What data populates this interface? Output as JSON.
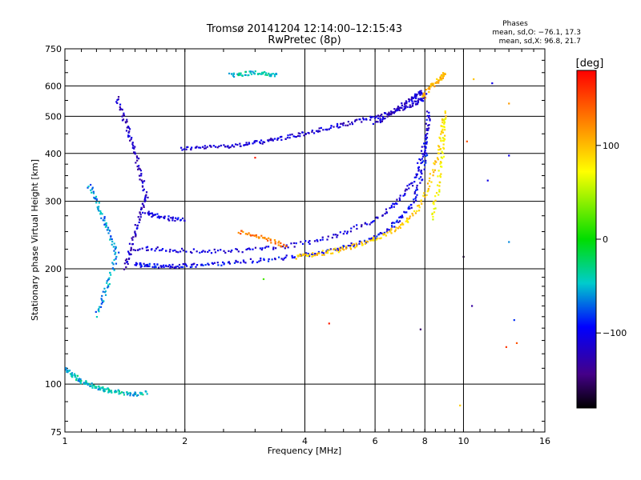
{
  "chart_data": {
    "type": "scatter",
    "title": "Tromsø 20141204 12:14:00–12:15:43",
    "subtitle": "RwPretec (8p)",
    "xlabel": "Frequency [MHz]",
    "ylabel": "Stationary phase Virtual Height [km]",
    "xscale": "log",
    "yscale": "log",
    "xlim": [
      1,
      16
    ],
    "ylim": [
      75,
      750
    ],
    "x_ticks": [
      1,
      2,
      4,
      6,
      8,
      10,
      16
    ],
    "x_tick_labels": [
      "1",
      "2",
      "4",
      "6",
      "8",
      "10",
      "16"
    ],
    "y_ticks": [
      75,
      100,
      200,
      300,
      400,
      500,
      600,
      750
    ],
    "y_tick_labels": [
      "75",
      "100",
      "200",
      "300",
      "400",
      "500",
      "600",
      "750"
    ],
    "grid": true,
    "stats": {
      "heading": "Phases",
      "line_o": "mean, sd,O: −76.1, 17.3",
      "line_x": "mean, sd,X:  96.8, 21.7"
    },
    "colorbar": {
      "label": "[deg]",
      "range": [
        -180,
        180
      ],
      "ticks": [
        100,
        0,
        -100
      ],
      "tick_labels": [
        "100",
        "0",
        "−100"
      ]
    },
    "traces": [
      {
        "x": [
          1.95,
          2.2,
          2.5,
          2.8,
          3.1,
          3.4,
          3.8,
          4.2,
          4.7,
          5.2,
          5.8,
          6.4,
          7.0,
          7.5,
          7.85,
          8.0
        ],
        "y": [
          412,
          414,
          418,
          422,
          428,
          436,
          446,
          456,
          468,
          480,
          494,
          508,
          522,
          538,
          555,
          570
        ],
        "phase": -110
      },
      {
        "x": [
          1.5,
          1.6,
          1.75,
          1.9,
          2.1,
          2.4,
          2.8,
          3.3,
          3.9,
          4.5,
          5.2,
          5.9,
          6.5,
          7.0,
          7.5,
          7.8,
          8.0,
          8.1
        ],
        "y": [
          205,
          204,
          203,
          203,
          204,
          206,
          209,
          212,
          216,
          222,
          230,
          240,
          254,
          272,
          300,
          340,
          390,
          450
        ],
        "phase": -95
      },
      {
        "x": [
          1.5,
          1.7,
          2.0,
          2.4,
          2.9,
          3.5,
          4.2,
          5.0,
          5.8,
          6.5,
          7.1,
          7.6,
          7.9,
          8.1,
          8.2
        ],
        "y": [
          226,
          225,
          223,
          222,
          224,
          228,
          236,
          248,
          264,
          285,
          312,
          350,
          400,
          460,
          520
        ],
        "phase": -105
      },
      {
        "x": [
          2.75,
          3.0,
          3.3,
          3.6
        ],
        "y": [
          250,
          244,
          236,
          230
        ],
        "phase": 135
      },
      {
        "x": [
          3.8,
          4.2,
          4.7,
          5.2,
          5.8,
          6.4,
          7.0,
          7.6,
          8.1,
          8.5,
          8.8,
          9.0
        ],
        "y": [
          215,
          218,
          222,
          228,
          236,
          246,
          260,
          282,
          320,
          380,
          450,
          520
        ],
        "phase": 95
      },
      {
        "x": [
          8.3,
          8.6,
          8.8,
          8.9,
          9.0
        ],
        "y": [
          270,
          320,
          380,
          440,
          500
        ],
        "phase": 75
      },
      {
        "x": [
          1.35,
          1.4,
          1.45,
          1.5,
          1.55,
          1.6,
          1.55,
          1.5,
          1.45,
          1.42
        ],
        "y": [
          560,
          500,
          450,
          400,
          350,
          310,
          280,
          250,
          220,
          200
        ],
        "phase": -115
      },
      {
        "x": [
          1.15,
          1.2,
          1.25,
          1.3,
          1.35,
          1.3,
          1.25,
          1.2
        ],
        "y": [
          330,
          300,
          270,
          245,
          220,
          190,
          170,
          150
        ],
        "phase": -60
      },
      {
        "x": [
          1.0,
          1.05,
          1.1,
          1.15,
          1.2,
          1.25,
          1.3,
          1.4,
          1.5,
          1.6
        ],
        "y": [
          110,
          105,
          102,
          100,
          98,
          97,
          96,
          95,
          94,
          95
        ],
        "phase": -45
      },
      {
        "x": [
          1.6,
          1.7,
          1.85,
          2.0
        ],
        "y": [
          280,
          275,
          270,
          268
        ],
        "phase": -100
      },
      {
        "x": [
          2.6,
          2.8,
          3.0,
          3.2,
          3.4
        ],
        "y": [
          640,
          645,
          650,
          645,
          640
        ],
        "phase": -40
      },
      {
        "x": [
          6.0,
          6.4,
          6.8,
          7.2,
          7.6,
          7.9
        ],
        "y": [
          480,
          500,
          520,
          545,
          565,
          580
        ],
        "phase": -110
      },
      {
        "x": [
          7.9,
          8.2,
          8.5,
          8.8,
          9.0
        ],
        "y": [
          560,
          590,
          610,
          630,
          650
        ],
        "phase": 110
      }
    ],
    "scattered_points": [
      {
        "x": 3.0,
        "y": 390,
        "phase": 170
      },
      {
        "x": 3.15,
        "y": 188,
        "phase": 20
      },
      {
        "x": 4.6,
        "y": 144,
        "phase": 170
      },
      {
        "x": 7.8,
        "y": 139,
        "phase": -150
      },
      {
        "x": 9.8,
        "y": 88,
        "phase": 95
      },
      {
        "x": 10.6,
        "y": 625,
        "phase": 100
      },
      {
        "x": 11.8,
        "y": 610,
        "phase": -100
      },
      {
        "x": 10.2,
        "y": 430,
        "phase": 150
      },
      {
        "x": 11.5,
        "y": 340,
        "phase": -100
      },
      {
        "x": 10.0,
        "y": 215,
        "phase": -170
      },
      {
        "x": 10.5,
        "y": 160,
        "phase": -130
      },
      {
        "x": 13.0,
        "y": 235,
        "phase": -60
      },
      {
        "x": 12.8,
        "y": 125,
        "phase": 160
      },
      {
        "x": 13.6,
        "y": 128,
        "phase": 150
      },
      {
        "x": 13.4,
        "y": 147,
        "phase": -80
      },
      {
        "x": 13.0,
        "y": 540,
        "phase": 120
      },
      {
        "x": 13.0,
        "y": 395,
        "phase": -100
      }
    ]
  }
}
